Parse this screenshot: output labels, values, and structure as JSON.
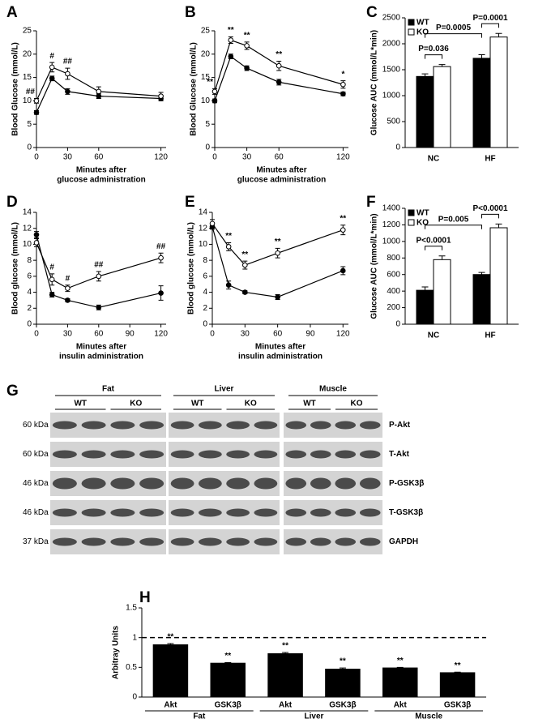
{
  "chart_data": [
    {
      "panel": "A",
      "type": "line",
      "ylabel": "Blood Glucose (mmol/L)",
      "xlabel": [
        "Minutes after",
        "glucose administration"
      ],
      "x": [
        0,
        15,
        30,
        60,
        120
      ],
      "xlim": [
        0,
        125
      ],
      "xticks": [
        0,
        30,
        60,
        120
      ],
      "ylim": [
        0,
        25
      ],
      "yticks": [
        0,
        5,
        10,
        15,
        20,
        25
      ],
      "series": [
        {
          "color": "#000000",
          "values": [
            7.5,
            14.8,
            12,
            11,
            10.5
          ],
          "errors": [
            0.4,
            0.5,
            0.6,
            0.5,
            0.5
          ]
        },
        {
          "color": "#ffffff",
          "values": [
            10,
            17.2,
            15.8,
            12,
            11
          ],
          "errors": [
            0.5,
            1,
            1.2,
            1,
            0.8
          ]
        }
      ],
      "significance": [
        "##",
        "#",
        "##",
        null,
        null
      ]
    },
    {
      "panel": "B",
      "type": "line",
      "ylabel": "Blood Glucose (mmol/L)",
      "xlabel": [
        "Minutes after",
        "glucose administration"
      ],
      "x": [
        0,
        15,
        30,
        60,
        120
      ],
      "xlim": [
        0,
        125
      ],
      "xticks": [
        0,
        30,
        60,
        120
      ],
      "ylim": [
        0,
        25
      ],
      "yticks": [
        0,
        5,
        10,
        15,
        20,
        25
      ],
      "series": [
        {
          "color": "#000000",
          "values": [
            10,
            19.5,
            17,
            14,
            11.5
          ],
          "errors": [
            0.4,
            0.5,
            0.5,
            0.6,
            0.4
          ]
        },
        {
          "color": "#ffffff",
          "values": [
            12,
            23,
            21.8,
            17.5,
            13.5
          ],
          "errors": [
            0.6,
            0.7,
            0.8,
            1,
            0.8
          ]
        }
      ],
      "significance": [
        "**",
        "**",
        "**",
        "**",
        "*"
      ]
    },
    {
      "panel": "C",
      "type": "bar",
      "ylabel": "Glucose AUC (mmol/L*min)",
      "categories": [
        "NC",
        "HF"
      ],
      "ylim": [
        0,
        2500
      ],
      "yticks": [
        0,
        500,
        1000,
        1500,
        2000,
        2500
      ],
      "series": [
        {
          "name": "WT",
          "color": "#000000",
          "values": [
            1370,
            1720
          ],
          "errors": [
            50,
            70
          ]
        },
        {
          "name": "KO",
          "color": "#ffffff",
          "values": [
            1560,
            2130
          ],
          "errors": [
            40,
            70
          ]
        }
      ],
      "comparisons": [
        "P=0.036",
        "P=0.0005",
        "P=0.0001"
      ]
    },
    {
      "panel": "D",
      "type": "line",
      "ylabel": "Blood glucose (mmol/L)",
      "xlabel": [
        "Minutes after",
        "insulin administration"
      ],
      "x": [
        0,
        15,
        30,
        60,
        120
      ],
      "xlim": [
        0,
        125
      ],
      "xticks": [
        0,
        30,
        60,
        90,
        120
      ],
      "ylim": [
        0,
        14
      ],
      "yticks": [
        0,
        2,
        4,
        6,
        8,
        10,
        12,
        14
      ],
      "series": [
        {
          "color": "#000000",
          "values": [
            11.2,
            3.7,
            3,
            2.1,
            3.9
          ],
          "errors": [
            0.4,
            0.3,
            0.2,
            0.3,
            0.9
          ]
        },
        {
          "color": "#ffffff",
          "values": [
            10.2,
            5.6,
            4.5,
            6,
            8.3
          ],
          "errors": [
            0.5,
            0.7,
            0.4,
            0.6,
            0.6
          ]
        }
      ],
      "significance": [
        null,
        "#",
        "#",
        "##",
        "##"
      ]
    },
    {
      "panel": "E",
      "type": "line",
      "ylabel": "Blood glucose (mmol/L)",
      "xlabel": [
        "Minutes after",
        "insulin administration"
      ],
      "x": [
        0,
        15,
        30,
        60,
        120
      ],
      "xlim": [
        0,
        125
      ],
      "xticks": [
        0,
        30,
        60,
        90,
        120
      ],
      "ylim": [
        0,
        14
      ],
      "yticks": [
        0,
        2,
        4,
        6,
        8,
        10,
        12,
        14
      ],
      "series": [
        {
          "color": "#000000",
          "values": [
            12.2,
            4.9,
            4,
            3.4,
            6.7
          ],
          "errors": [
            0.3,
            0.5,
            0.2,
            0.3,
            0.5
          ]
        },
        {
          "color": "#ffffff",
          "values": [
            12.6,
            9.7,
            7.4,
            8.9,
            11.8
          ],
          "errors": [
            0.5,
            0.5,
            0.5,
            0.6,
            0.6
          ]
        }
      ],
      "significance": [
        null,
        "**",
        "**",
        "**",
        "**"
      ]
    },
    {
      "panel": "F",
      "type": "bar",
      "ylabel": "Glucose AUC (mmol/L*min)",
      "categories": [
        "NC",
        "HF"
      ],
      "ylim": [
        0,
        1400
      ],
      "yticks": [
        0,
        200,
        400,
        600,
        800,
        1000,
        1200,
        1400
      ],
      "series": [
        {
          "name": "WT",
          "color": "#000000",
          "values": [
            410,
            600
          ],
          "errors": [
            40,
            25
          ]
        },
        {
          "name": "KO",
          "color": "#ffffff",
          "values": [
            780,
            1165
          ],
          "errors": [
            45,
            45
          ]
        }
      ],
      "comparisons": [
        "P<0.0001",
        "P=0.005",
        "P<0.0001"
      ]
    },
    {
      "panel": "H",
      "type": "bar",
      "ylabel": "Arbitray Units",
      "categories": [
        "Akt",
        "GSK3β",
        "Akt",
        "GSK3β",
        "Akt",
        "GSK3β"
      ],
      "groups": [
        "Fat",
        "Liver",
        "Muscle"
      ],
      "values": [
        0.88,
        0.57,
        0.73,
        0.47,
        0.49,
        0.41
      ],
      "errors": [
        0.02,
        0.01,
        0.02,
        0.02,
        0.01,
        0.01
      ],
      "color": "#000000",
      "annotations": [
        "**",
        "**",
        "**",
        "**",
        "**",
        "**"
      ],
      "reference_line": 1,
      "ylim": [
        0,
        1.5
      ],
      "yticks": [
        0,
        0.5,
        1,
        1.5
      ]
    }
  ],
  "blot": {
    "panel": "G",
    "tissues": [
      "Fat",
      "Liver",
      "Muscle"
    ],
    "genotypes": [
      "WT",
      "KO"
    ],
    "rows": [
      {
        "size": "60 kDa",
        "protein": "P-Akt"
      },
      {
        "size": "60 kDa",
        "protein": "T-Akt"
      },
      {
        "size": "46 kDa",
        "protein": "P-GSK3β"
      },
      {
        "size": "46 kDa",
        "protein": "T-GSK3β"
      },
      {
        "size": "37 kDa",
        "protein": "GAPDH"
      }
    ]
  }
}
